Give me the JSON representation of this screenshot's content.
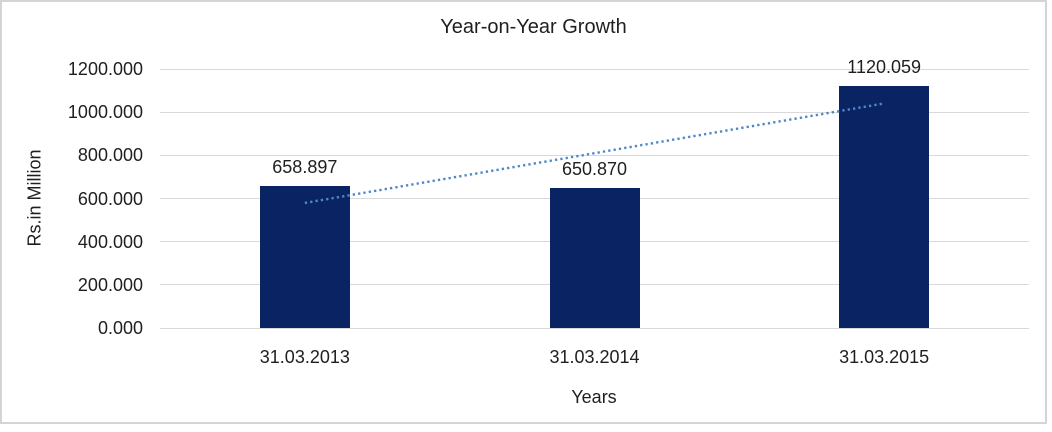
{
  "chart_data": {
    "type": "bar",
    "title": "Year-on-Year Growth",
    "xlabel": "Years",
    "ylabel": "Rs.in Million",
    "categories": [
      "31.03.2013",
      "31.03.2014",
      "31.03.2015"
    ],
    "series": [
      {
        "values": [
          658.897,
          650.87,
          1120.059
        ],
        "labels": [
          "658.897",
          "650.870",
          "1120.059"
        ]
      }
    ],
    "ylim": [
      0,
      1200
    ],
    "y_ticks": [
      {
        "value": 1200,
        "label": "1200.000"
      },
      {
        "value": 1000,
        "label": "1000.000"
      },
      {
        "value": 800,
        "label": "800.000"
      },
      {
        "value": 600,
        "label": "600.000"
      },
      {
        "value": 400,
        "label": "400.000"
      },
      {
        "value": 200,
        "label": "200.000"
      },
      {
        "value": 0,
        "label": "0.000"
      }
    ],
    "grid": "horizontal",
    "legend_position": "none",
    "trendline": {
      "type": "linear",
      "style": "dotted",
      "x_span": [
        0,
        2
      ],
      "start_value": 579.4,
      "end_value": 1040.5
    }
  },
  "colors": {
    "bar_fill": "#0a2463",
    "trendline": "#4e87c9",
    "gridline": "#d9d9d9",
    "frame_border": "#d4d4d4",
    "text": "#1f1f1f"
  }
}
